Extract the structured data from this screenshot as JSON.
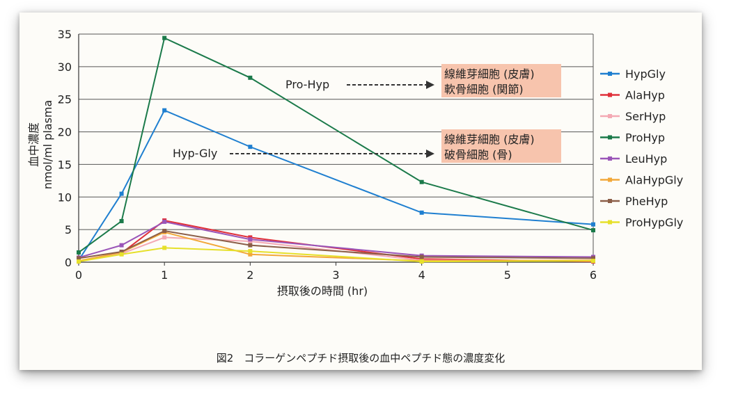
{
  "chart_data": {
    "type": "line",
    "xlabel": "摂取後の時間 (hr)",
    "ylabel": "血中濃度",
    "ylabel_unit": "nmol/ml plasma",
    "x": [
      0,
      0.5,
      1,
      2,
      4,
      6
    ],
    "xlim": [
      0,
      6
    ],
    "ylim": [
      0,
      35
    ],
    "xticks": [
      "0",
      "1",
      "2",
      "3",
      "4",
      "5",
      "6"
    ],
    "yticks": [
      "0",
      "5",
      "10",
      "15",
      "20",
      "25",
      "30",
      "35"
    ],
    "grid": "horizontal",
    "legend_position": "right",
    "series": [
      {
        "name": "HypGly",
        "color": "#1f7fd0",
        "values": [
          0.3,
          10.5,
          23.3,
          17.7,
          7.6,
          5.8
        ]
      },
      {
        "name": "AlaHyp",
        "color": "#e0303a",
        "values": [
          0.1,
          1.4,
          6.4,
          3.8,
          0.5,
          0.1
        ]
      },
      {
        "name": "SerHyp",
        "color": "#f4a9b4",
        "values": [
          0.2,
          1.3,
          3.8,
          3.2,
          0.3,
          0.2
        ]
      },
      {
        "name": "ProHyp",
        "color": "#1b7a4a",
        "values": [
          1.5,
          6.3,
          34.4,
          28.3,
          12.3,
          4.9
        ]
      },
      {
        "name": "LeuHyp",
        "color": "#9a55b8",
        "values": [
          0.7,
          2.6,
          6.2,
          3.5,
          1.0,
          0.8
        ]
      },
      {
        "name": "AlaHypGly",
        "color": "#f2a83a",
        "values": [
          0.2,
          1.5,
          4.6,
          1.2,
          0.2,
          0.3
        ]
      },
      {
        "name": "PheHyp",
        "color": "#8b5e48",
        "values": [
          0.6,
          1.6,
          4.8,
          2.6,
          0.8,
          0.6
        ]
      },
      {
        "name": "ProHypGly",
        "color": "#e6e02a",
        "values": [
          0.1,
          1.2,
          2.2,
          1.7,
          0.1,
          0.2
        ]
      }
    ],
    "annotations": [
      {
        "label": "Pro-Hyp",
        "lines": [
          "線維芽細胞 (皮膚)",
          "軟骨細胞 (関節)"
        ]
      },
      {
        "label": "Hyp-Gly",
        "lines": [
          "線維芽細胞 (皮膚)",
          "破骨細胞 (骨)"
        ]
      }
    ],
    "caption": "図2　コラーゲンペプチド摂取後の血中ペプチド態の濃度変化"
  }
}
